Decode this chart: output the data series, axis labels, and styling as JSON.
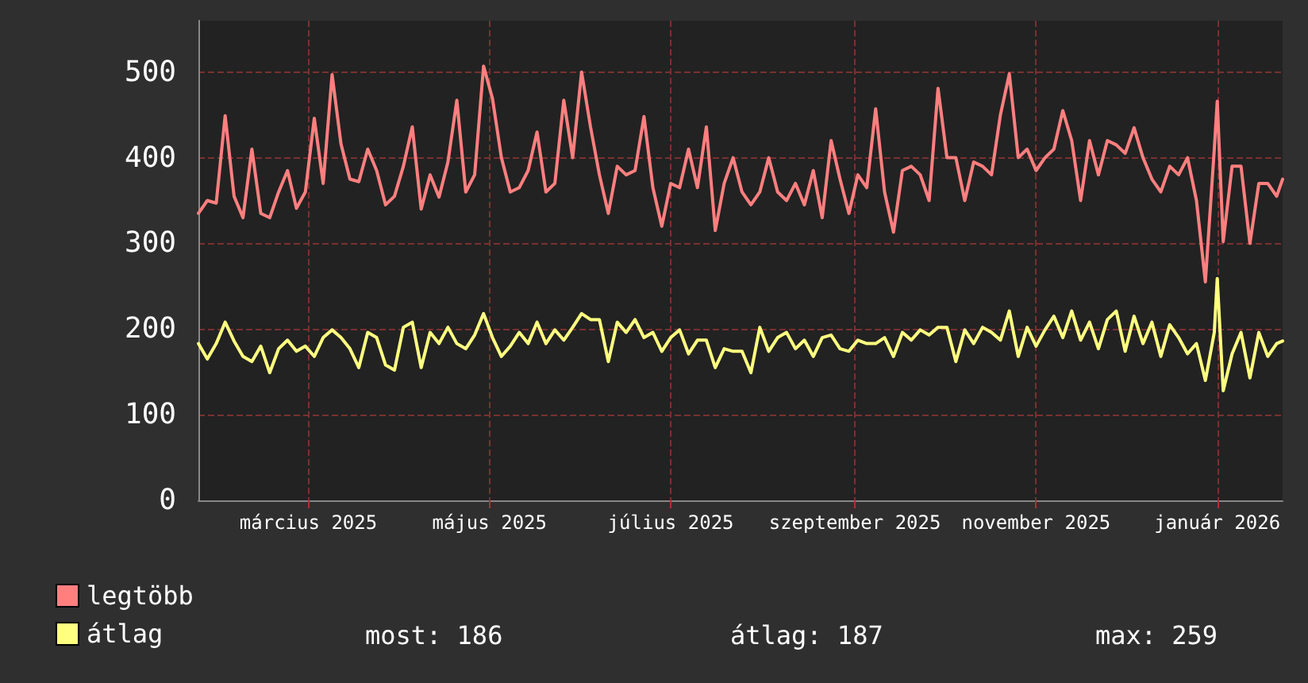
{
  "chart_data": {
    "type": "line",
    "x": [
      "2025-01-23",
      "2025-01-26",
      "2025-01-29",
      "2025-02-01",
      "2025-02-04",
      "2025-02-07",
      "2025-02-10",
      "2025-02-13",
      "2025-02-16",
      "2025-02-19",
      "2025-02-22",
      "2025-02-25",
      "2025-02-28",
      "2025-03-03",
      "2025-03-06",
      "2025-03-09",
      "2025-03-12",
      "2025-03-15",
      "2025-03-18",
      "2025-03-21",
      "2025-03-24",
      "2025-03-27",
      "2025-03-30",
      "2025-04-02",
      "2025-04-05",
      "2025-04-08",
      "2025-04-11",
      "2025-04-14",
      "2025-04-17",
      "2025-04-20",
      "2025-04-23",
      "2025-04-26",
      "2025-04-29",
      "2025-05-02",
      "2025-05-05",
      "2025-05-08",
      "2025-05-11",
      "2025-05-14",
      "2025-05-17",
      "2025-05-20",
      "2025-05-23",
      "2025-05-26",
      "2025-05-29",
      "2025-06-01",
      "2025-06-04",
      "2025-06-07",
      "2025-06-10",
      "2025-06-13",
      "2025-06-16",
      "2025-06-19",
      "2025-06-22",
      "2025-06-25",
      "2025-06-28",
      "2025-07-01",
      "2025-07-04",
      "2025-07-07",
      "2025-07-10",
      "2025-07-13",
      "2025-07-16",
      "2025-07-19",
      "2025-07-22",
      "2025-07-25",
      "2025-07-28",
      "2025-07-31",
      "2025-08-03",
      "2025-08-06",
      "2025-08-09",
      "2025-08-12",
      "2025-08-15",
      "2025-08-18",
      "2025-08-21",
      "2025-08-24",
      "2025-08-27",
      "2025-08-30",
      "2025-09-02",
      "2025-09-05",
      "2025-09-08",
      "2025-09-11",
      "2025-09-14",
      "2025-09-17",
      "2025-09-20",
      "2025-09-23",
      "2025-09-26",
      "2025-09-29",
      "2025-10-02",
      "2025-10-05",
      "2025-10-08",
      "2025-10-11",
      "2025-10-14",
      "2025-10-17",
      "2025-10-20",
      "2025-10-23",
      "2025-10-26",
      "2025-10-29",
      "2025-11-01",
      "2025-11-04",
      "2025-11-07",
      "2025-11-10",
      "2025-11-13",
      "2025-11-16",
      "2025-11-19",
      "2025-11-22",
      "2025-11-25",
      "2025-11-28",
      "2025-12-01",
      "2025-12-04",
      "2025-12-07",
      "2025-12-10",
      "2025-12-13",
      "2025-12-16",
      "2025-12-19",
      "2025-12-22",
      "2025-12-25",
      "2025-12-28",
      "2025-12-31",
      "2026-01-01",
      "2026-01-03",
      "2026-01-06",
      "2026-01-09",
      "2026-01-12",
      "2026-01-15",
      "2026-01-18",
      "2026-01-21",
      "2026-01-23"
    ],
    "series": [
      {
        "name": "legtöbb",
        "color": "#ff7f7f",
        "values": [
          335,
          350,
          347,
          449,
          355,
          330,
          410,
          335,
          330,
          360,
          385,
          341,
          360,
          446,
          370,
          497,
          416,
          375,
          372,
          410,
          385,
          345,
          355,
          390,
          436,
          340,
          380,
          354,
          395,
          467,
          360,
          380,
          507,
          469,
          400,
          360,
          365,
          385,
          430,
          360,
          370,
          467,
          400,
          500,
          436,
          380,
          335,
          390,
          380,
          385,
          448,
          365,
          320,
          370,
          365,
          410,
          365,
          436,
          315,
          370,
          400,
          360,
          345,
          360,
          400,
          360,
          350,
          370,
          345,
          385,
          330,
          420,
          375,
          335,
          380,
          365,
          457,
          360,
          313,
          385,
          390,
          380,
          350,
          481,
          400,
          400,
          350,
          395,
          390,
          380,
          450,
          498,
          400,
          410,
          385,
          400,
          410,
          455,
          420,
          350,
          420,
          380,
          420,
          415,
          405,
          435,
          400,
          375,
          360,
          390,
          380,
          400,
          350,
          255,
          410,
          466,
          302,
          390,
          390,
          300,
          370,
          370,
          355,
          375
        ]
      },
      {
        "name": "átlag",
        "color": "#ffff80",
        "values": [
          183,
          165,
          183,
          208,
          186,
          168,
          162,
          180,
          149,
          177,
          187,
          174,
          180,
          168,
          190,
          199,
          190,
          177,
          155,
          196,
          190,
          158,
          152,
          202,
          208,
          155,
          196,
          183,
          202,
          183,
          177,
          193,
          218,
          190,
          168,
          180,
          196,
          183,
          208,
          183,
          199,
          187,
          202,
          218,
          211,
          211,
          162,
          208,
          196,
          211,
          190,
          196,
          174,
          190,
          199,
          171,
          187,
          187,
          155,
          177,
          174,
          174,
          149,
          202,
          174,
          190,
          196,
          177,
          187,
          168,
          190,
          193,
          177,
          174,
          187,
          183,
          183,
          190,
          168,
          196,
          187,
          199,
          193,
          202,
          202,
          162,
          199,
          183,
          202,
          196,
          187,
          221,
          168,
          202,
          180,
          199,
          215,
          190,
          221,
          187,
          208,
          177,
          211,
          221,
          174,
          215,
          183,
          208,
          168,
          205,
          190,
          171,
          183,
          140,
          196,
          259,
          128,
          171,
          196,
          143,
          196,
          168,
          183,
          186
        ]
      }
    ],
    "xlim": [
      "2025-01-23",
      "2026-01-23"
    ],
    "xticks": [
      {
        "value": "2025-03-01",
        "label": "március 2025"
      },
      {
        "value": "2025-05-01",
        "label": "május 2025"
      },
      {
        "value": "2025-07-01",
        "label": "július 2025"
      },
      {
        "value": "2025-09-01",
        "label": "szeptember 2025"
      },
      {
        "value": "2025-11-01",
        "label": "november 2025"
      },
      {
        "value": "2026-01-01",
        "label": "január 2026"
      }
    ],
    "ylim": [
      0,
      560
    ],
    "yticks": [
      0,
      100,
      200,
      300,
      400,
      500
    ],
    "grid": true,
    "legend": "bottom left",
    "marker": "none",
    "line_style": "solid",
    "annotations": [
      "most: 186",
      "átlag: 187",
      "max: 259"
    ]
  }
}
